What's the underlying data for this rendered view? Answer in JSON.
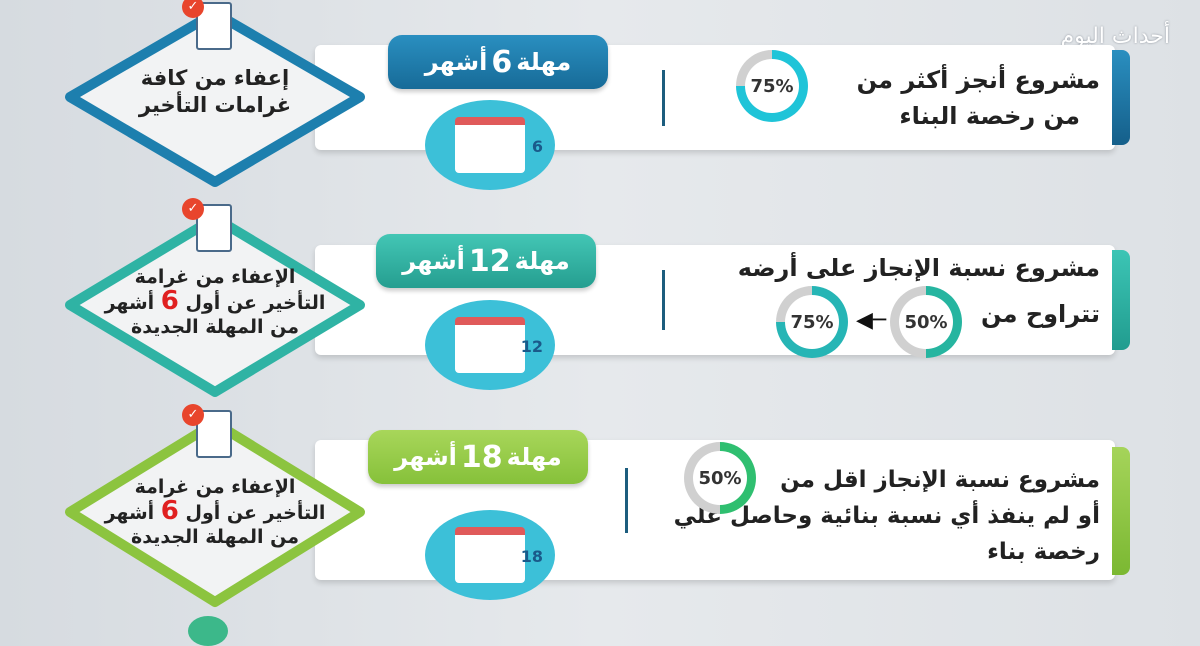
{
  "watermark": "أحداث اليوم",
  "rows": [
    {
      "tab_prefix": "مهلة",
      "tab_number": "6",
      "tab_suffix": "أشهر",
      "color": "#1b7fae",
      "text_lines": [
        "مشروع أنجز أكثر من",
        "من رخصة البناء"
      ],
      "percent_label": "75%",
      "percent": 75,
      "benefit_lines": [
        "إعفاء من كافة",
        "غرامات التأخير"
      ],
      "calendar_number": "6"
    },
    {
      "tab_prefix": "مهلة",
      "tab_number": "12",
      "tab_suffix": "أشهر",
      "color": "#2eb3a5",
      "text_lines": [
        "مشروع نسبة الإنجاز على أرضه",
        "تتراوح من"
      ],
      "percent_from_label": "50%",
      "percent_from": 50,
      "percent_to_label": "75%",
      "percent_to": 75,
      "benefit_lines": [
        "الإعفاء من غرامة",
        "التأخير عن أول",
        "أشهر",
        "من المهلة الجديدة"
      ],
      "benefit_number": "6",
      "calendar_number": "12"
    },
    {
      "tab_prefix": "مهلة",
      "tab_number": "18",
      "tab_suffix": "أشهر",
      "color": "#8cc43f",
      "text_lines": [
        "مشروع نسبة الإنجاز اقل من",
        "أو لم ينفذ أي نسبة بنائية وحاصل علي",
        "رخصة بناء"
      ],
      "percent_label": "50%",
      "percent": 50,
      "benefit_lines": [
        "الإعفاء من غرامة",
        "التأخير عن أول",
        "أشهر",
        "من المهلة الجديدة"
      ],
      "benefit_number": "6",
      "calendar_number": "18"
    }
  ]
}
